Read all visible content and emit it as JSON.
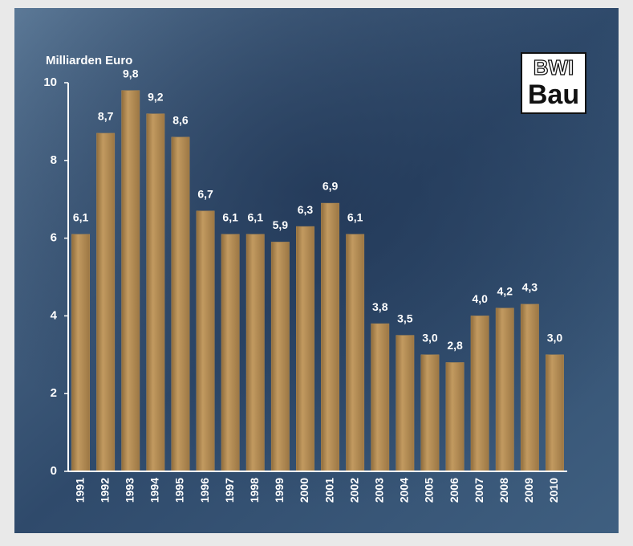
{
  "chart_data": {
    "type": "bar",
    "y_label": "Milliarden Euro",
    "categories": [
      "1991",
      "1992",
      "1993",
      "1994",
      "1995",
      "1996",
      "1997",
      "1998",
      "1999",
      "2000",
      "2001",
      "2002",
      "2003",
      "2004",
      "2005",
      "2006",
      "2007",
      "2008",
      "2009",
      "2010"
    ],
    "values": [
      6.1,
      8.7,
      9.8,
      9.2,
      8.6,
      6.7,
      6.1,
      6.1,
      5.9,
      6.3,
      6.9,
      6.1,
      3.8,
      3.5,
      3.0,
      2.8,
      4.0,
      4.2,
      4.3,
      3.0
    ],
    "value_labels": [
      "6,1",
      "8,7",
      "9,8",
      "9,2",
      "8,6",
      "6,7",
      "6,1",
      "6,1",
      "5,9",
      "6,3",
      "6,9",
      "6,1",
      "3,8",
      "3,5",
      "3,0",
      "2,8",
      "4,0",
      "4,2",
      "4,3",
      "3,0"
    ],
    "color": "#b08a52",
    "ylim": [
      0,
      10
    ],
    "yticks": [
      0,
      2,
      4,
      6,
      8,
      10
    ],
    "grid": false
  },
  "logo": {
    "line1": "BWI",
    "line2": "Bau"
  }
}
